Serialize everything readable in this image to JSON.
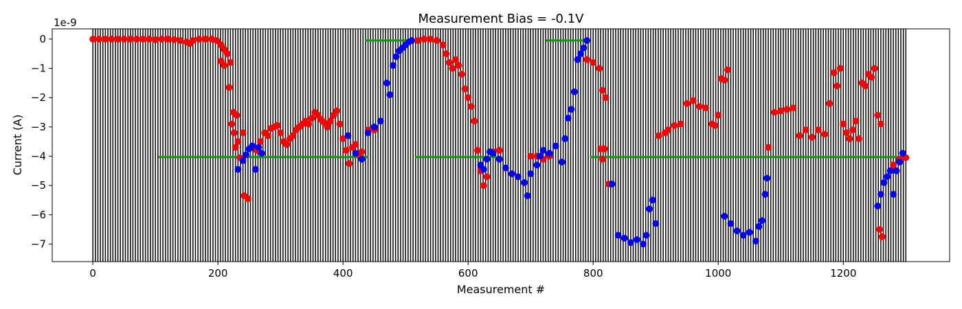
{
  "chart_data": {
    "type": "scatter",
    "title": "Measurement Bias = -0.1V",
    "xlabel": "Measurement #",
    "ylabel": "Current (A)",
    "y_offset_label": "1e-9",
    "xlim": [
      -65,
      1370
    ],
    "ylim": [
      -7.6,
      0.35
    ],
    "x_ticks": [
      0,
      200,
      400,
      600,
      800,
      1000,
      1200
    ],
    "x_tick_labels": [
      "0",
      "200",
      "400",
      "600",
      "800",
      "1000",
      "1200"
    ],
    "y_ticks": [
      0,
      -1,
      -2,
      -3,
      -4,
      -5,
      -6,
      -7
    ],
    "y_tick_labels": [
      "0",
      "−1",
      "−2",
      "−3",
      "−4",
      "−5",
      "−6",
      "−7"
    ],
    "vertical_lines": {
      "x_start": 0,
      "x_end": 1302,
      "spacing": 4,
      "color": "#000000"
    },
    "green_segments": [
      {
        "x0": 105,
        "x1": 440,
        "y": -4.03
      },
      {
        "x0": 435,
        "x1": 520,
        "y": -0.05
      },
      {
        "x0": 515,
        "x1": 650,
        "y": -4.03
      },
      {
        "x0": 725,
        "x1": 790,
        "y": -0.05
      },
      {
        "x0": 795,
        "x1": 1300,
        "y": -4.03
      }
    ],
    "series": [
      {
        "color": "#ff0000",
        "points": [
          [
            0,
            0
          ],
          [
            10,
            0
          ],
          [
            20,
            0
          ],
          [
            30,
            0
          ],
          [
            40,
            0
          ],
          [
            50,
            0
          ],
          [
            60,
            0
          ],
          [
            70,
            0
          ],
          [
            80,
            0
          ],
          [
            90,
            0
          ],
          [
            100,
            -0.02
          ],
          [
            110,
            0
          ],
          [
            120,
            0
          ],
          [
            130,
            -0.02
          ],
          [
            140,
            -0.05
          ],
          [
            150,
            -0.1
          ],
          [
            155,
            -0.15
          ],
          [
            160,
            -0.05
          ],
          [
            170,
            0
          ],
          [
            180,
            0
          ],
          [
            190,
            0
          ],
          [
            198,
            -0.05
          ],
          [
            205,
            -0.2
          ],
          [
            210,
            -0.35
          ],
          [
            215,
            -0.5
          ],
          [
            205,
            -0.75
          ],
          [
            210,
            -0.9
          ],
          [
            220,
            -0.8
          ],
          [
            218,
            -1.65
          ],
          [
            225,
            -2.5
          ],
          [
            230,
            -2.6
          ],
          [
            222,
            -2.9
          ],
          [
            226,
            -3.2
          ],
          [
            232,
            -3.5
          ],
          [
            228,
            -3.7
          ],
          [
            235,
            -4.05
          ],
          [
            240,
            -3.2
          ],
          [
            242,
            -5.35
          ],
          [
            248,
            -5.45
          ],
          [
            262,
            -3.8
          ],
          [
            268,
            -3.5
          ],
          [
            275,
            -3.2
          ],
          [
            280,
            -3.3
          ],
          [
            285,
            -3.05
          ],
          [
            290,
            -3.0
          ],
          [
            295,
            -2.95
          ],
          [
            300,
            -3.2
          ],
          [
            305,
            -3.5
          ],
          [
            310,
            -3.6
          ],
          [
            315,
            -3.4
          ],
          [
            320,
            -3.3
          ],
          [
            325,
            -3.1
          ],
          [
            330,
            -3.0
          ],
          [
            335,
            -2.9
          ],
          [
            340,
            -2.8
          ],
          [
            345,
            -2.9
          ],
          [
            350,
            -2.7
          ],
          [
            355,
            -2.5
          ],
          [
            360,
            -2.6
          ],
          [
            365,
            -2.75
          ],
          [
            370,
            -2.85
          ],
          [
            375,
            -3.0
          ],
          [
            380,
            -2.8
          ],
          [
            385,
            -2.6
          ],
          [
            390,
            -2.45
          ],
          [
            395,
            -2.9
          ],
          [
            400,
            -3.4
          ],
          [
            405,
            -3.8
          ],
          [
            410,
            -4.25
          ],
          [
            415,
            -3.7
          ],
          [
            420,
            -3.6
          ],
          [
            425,
            -3.95
          ],
          [
            430,
            -3.85
          ],
          [
            440,
            -3.1
          ],
          [
            450,
            -3.1
          ],
          [
            520,
            -0.05
          ],
          [
            530,
            0
          ],
          [
            540,
            0
          ],
          [
            550,
            -0.05
          ],
          [
            560,
            -0.2
          ],
          [
            565,
            -0.5
          ],
          [
            570,
            -0.8
          ],
          [
            575,
            -1.0
          ],
          [
            580,
            -0.7
          ],
          [
            585,
            -0.9
          ],
          [
            590,
            -1.2
          ],
          [
            595,
            -1.7
          ],
          [
            600,
            -2.0
          ],
          [
            605,
            -2.3
          ],
          [
            610,
            -2.8
          ],
          [
            615,
            -3.8
          ],
          [
            620,
            -4.5
          ],
          [
            625,
            -5.0
          ],
          [
            630,
            -4.7
          ],
          [
            640,
            -3.85
          ],
          [
            650,
            -3.8
          ],
          [
            700,
            -4.0
          ],
          [
            710,
            -4.0
          ],
          [
            720,
            -4.1
          ],
          [
            730,
            -4.0
          ],
          [
            790,
            -0.7
          ],
          [
            800,
            -0.8
          ],
          [
            810,
            -1.0
          ],
          [
            815,
            -1.75
          ],
          [
            820,
            -2.0
          ],
          [
            812,
            -3.75
          ],
          [
            818,
            -3.75
          ],
          [
            815,
            -4.1
          ],
          [
            825,
            -4.95
          ],
          [
            905,
            -3.3
          ],
          [
            915,
            -3.2
          ],
          [
            920,
            -3.1
          ],
          [
            930,
            -2.95
          ],
          [
            940,
            -2.9
          ],
          [
            950,
            -2.2
          ],
          [
            960,
            -2.1
          ],
          [
            970,
            -2.3
          ],
          [
            980,
            -2.35
          ],
          [
            990,
            -2.9
          ],
          [
            995,
            -2.95
          ],
          [
            1000,
            -2.6
          ],
          [
            1005,
            -1.35
          ],
          [
            1010,
            -1.4
          ],
          [
            1015,
            -1.05
          ],
          [
            1080,
            -3.7
          ],
          [
            1090,
            -2.5
          ],
          [
            1100,
            -2.45
          ],
          [
            1110,
            -2.4
          ],
          [
            1120,
            -2.35
          ],
          [
            1130,
            -3.3
          ],
          [
            1140,
            -3.1
          ],
          [
            1150,
            -3.35
          ],
          [
            1160,
            -3.1
          ],
          [
            1170,
            -3.25
          ],
          [
            1178,
            -2.2
          ],
          [
            1185,
            -1.15
          ],
          [
            1190,
            -1.6
          ],
          [
            1195,
            -1.0
          ],
          [
            1200,
            -2.9
          ],
          [
            1205,
            -3.2
          ],
          [
            1210,
            -3.4
          ],
          [
            1215,
            -3.1
          ],
          [
            1220,
            -2.8
          ],
          [
            1225,
            -3.4
          ],
          [
            1230,
            -1.5
          ],
          [
            1235,
            -1.6
          ],
          [
            1240,
            -1.2
          ],
          [
            1245,
            -1.3
          ],
          [
            1250,
            -1.0
          ],
          [
            1255,
            -2.6
          ],
          [
            1260,
            -2.9
          ],
          [
            1258,
            -6.5
          ],
          [
            1262,
            -6.75
          ],
          [
            1280,
            -4.3
          ],
          [
            1290,
            -4.1
          ],
          [
            1295,
            -3.9
          ],
          [
            1300,
            -4.05
          ]
        ]
      },
      {
        "color": "#0000ff",
        "points": [
          [
            232,
            -4.45
          ],
          [
            240,
            -4.15
          ],
          [
            245,
            -3.95
          ],
          [
            250,
            -3.75
          ],
          [
            255,
            -3.65
          ],
          [
            260,
            -4.45
          ],
          [
            265,
            -3.7
          ],
          [
            270,
            -3.9
          ],
          [
            408,
            -3.3
          ],
          [
            420,
            -3.9
          ],
          [
            430,
            -4.1
          ],
          [
            440,
            -3.2
          ],
          [
            450,
            -3.0
          ],
          [
            460,
            -2.8
          ],
          [
            470,
            -1.5
          ],
          [
            475,
            -1.9
          ],
          [
            480,
            -0.9
          ],
          [
            485,
            -0.6
          ],
          [
            490,
            -0.4
          ],
          [
            495,
            -0.3
          ],
          [
            500,
            -0.2
          ],
          [
            505,
            -0.1
          ],
          [
            510,
            -0.05
          ],
          [
            620,
            -4.3
          ],
          [
            625,
            -4.45
          ],
          [
            630,
            -4.1
          ],
          [
            635,
            -3.85
          ],
          [
            640,
            -3.9
          ],
          [
            650,
            -4.1
          ],
          [
            660,
            -4.4
          ],
          [
            670,
            -4.6
          ],
          [
            680,
            -4.7
          ],
          [
            690,
            -4.9
          ],
          [
            695,
            -5.35
          ],
          [
            700,
            -4.6
          ],
          [
            710,
            -4.3
          ],
          [
            715,
            -4.0
          ],
          [
            720,
            -3.8
          ],
          [
            730,
            -3.9
          ],
          [
            740,
            -3.65
          ],
          [
            750,
            -4.2
          ],
          [
            755,
            -3.4
          ],
          [
            760,
            -2.7
          ],
          [
            765,
            -2.4
          ],
          [
            770,
            -1.8
          ],
          [
            775,
            -0.7
          ],
          [
            780,
            -0.5
          ],
          [
            785,
            -0.3
          ],
          [
            790,
            -0.05
          ],
          [
            830,
            -4.95
          ],
          [
            840,
            -6.7
          ],
          [
            850,
            -6.8
          ],
          [
            860,
            -6.95
          ],
          [
            870,
            -6.85
          ],
          [
            880,
            -7.0
          ],
          [
            885,
            -6.7
          ],
          [
            890,
            -5.8
          ],
          [
            895,
            -5.5
          ],
          [
            900,
            -6.3
          ],
          [
            1010,
            -6.05
          ],
          [
            1020,
            -6.3
          ],
          [
            1030,
            -6.55
          ],
          [
            1040,
            -6.7
          ],
          [
            1050,
            -6.6
          ],
          [
            1060,
            -6.9
          ],
          [
            1065,
            -6.4
          ],
          [
            1070,
            -6.2
          ],
          [
            1075,
            -5.3
          ],
          [
            1078,
            -4.75
          ],
          [
            1255,
            -5.7
          ],
          [
            1260,
            -5.3
          ],
          [
            1265,
            -4.9
          ],
          [
            1270,
            -4.7
          ],
          [
            1275,
            -4.5
          ],
          [
            1280,
            -5.3
          ],
          [
            1285,
            -4.5
          ],
          [
            1290,
            -4.2
          ],
          [
            1295,
            -3.9
          ]
        ]
      }
    ]
  }
}
